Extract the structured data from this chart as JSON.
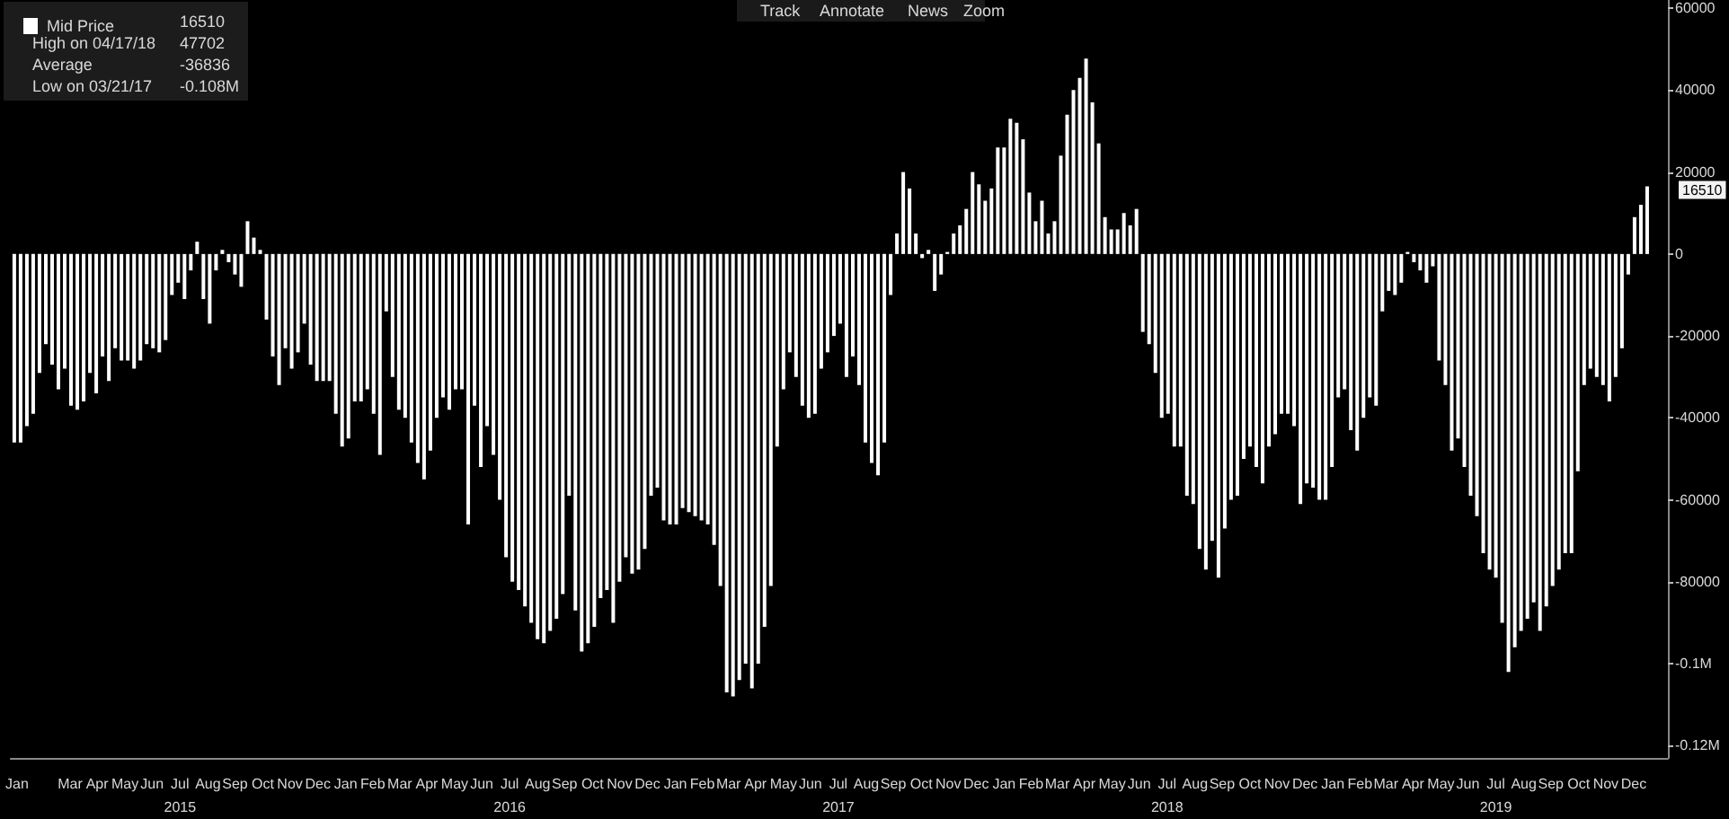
{
  "chart_data": {
    "type": "bar",
    "legend": "top left",
    "grid": false,
    "x": [
      "2015-01-13",
      "2015-01-20",
      "2015-01-27",
      "2015-02-03",
      "2015-02-10",
      "2015-02-17",
      "2015-02-24",
      "2015-03-03",
      "2015-03-10",
      "2015-03-17",
      "2015-03-24",
      "2015-03-31",
      "2015-04-07",
      "2015-04-14",
      "2015-04-21",
      "2015-04-28",
      "2015-05-05",
      "2015-05-12",
      "2015-05-19",
      "2015-05-26",
      "2015-06-02",
      "2015-06-09",
      "2015-06-16",
      "2015-06-23",
      "2015-06-30",
      "2015-07-07",
      "2015-07-14",
      "2015-07-21",
      "2015-07-28",
      "2015-08-04",
      "2015-08-11",
      "2015-08-18",
      "2015-08-25",
      "2015-09-01",
      "2015-09-08",
      "2015-09-15",
      "2015-09-22",
      "2015-09-29",
      "2015-10-06",
      "2015-10-13",
      "2015-10-20",
      "2015-10-27",
      "2015-11-03",
      "2015-11-10",
      "2015-11-17",
      "2015-11-24",
      "2015-12-01",
      "2015-12-08",
      "2015-12-15",
      "2015-12-22",
      "2015-12-29",
      "2016-01-05",
      "2016-01-12",
      "2016-01-19",
      "2016-01-26",
      "2016-02-02",
      "2016-02-09",
      "2016-02-16",
      "2016-02-23",
      "2016-03-01",
      "2016-03-08",
      "2016-03-15",
      "2016-03-22",
      "2016-03-29",
      "2016-04-05",
      "2016-04-12",
      "2016-04-19",
      "2016-04-26",
      "2016-05-03",
      "2016-05-10",
      "2016-05-17",
      "2016-05-24",
      "2016-05-31",
      "2016-06-07",
      "2016-06-14",
      "2016-06-21",
      "2016-06-28",
      "2016-07-05",
      "2016-07-12",
      "2016-07-19",
      "2016-07-26",
      "2016-08-02",
      "2016-08-09",
      "2016-08-16",
      "2016-08-23",
      "2016-08-30",
      "2016-09-06",
      "2016-09-13",
      "2016-09-20",
      "2016-09-27",
      "2016-10-04",
      "2016-10-11",
      "2016-10-18",
      "2016-10-25",
      "2016-11-01",
      "2016-11-08",
      "2016-11-15",
      "2016-11-22",
      "2016-11-29",
      "2016-12-06",
      "2016-12-13",
      "2016-12-20",
      "2016-12-27",
      "2017-01-03",
      "2017-01-10",
      "2017-01-17",
      "2017-01-24",
      "2017-01-31",
      "2017-02-07",
      "2017-02-14",
      "2017-02-21",
      "2017-02-28",
      "2017-03-07",
      "2017-03-14",
      "2017-03-21",
      "2017-03-28",
      "2017-04-04",
      "2017-04-11",
      "2017-04-18",
      "2017-04-25",
      "2017-05-02",
      "2017-05-09",
      "2017-05-16",
      "2017-05-23",
      "2017-05-30",
      "2017-06-06",
      "2017-06-13",
      "2017-06-20",
      "2017-06-27",
      "2017-07-04",
      "2017-07-11",
      "2017-07-18",
      "2017-07-25",
      "2017-08-01",
      "2017-08-08",
      "2017-08-15",
      "2017-08-22",
      "2017-08-29",
      "2017-09-05",
      "2017-09-12",
      "2017-09-19",
      "2017-09-26",
      "2017-10-03",
      "2017-10-10",
      "2017-10-17",
      "2017-10-24",
      "2017-10-31",
      "2017-11-07",
      "2017-11-14",
      "2017-11-21",
      "2017-11-28",
      "2017-12-05",
      "2017-12-12",
      "2017-12-19",
      "2017-12-26",
      "2018-01-02",
      "2018-01-09",
      "2018-01-16",
      "2018-01-23",
      "2018-01-30",
      "2018-02-06",
      "2018-02-13",
      "2018-02-20",
      "2018-02-27",
      "2018-03-06",
      "2018-03-13",
      "2018-03-20",
      "2018-03-27",
      "2018-04-03",
      "2018-04-10",
      "2018-04-17",
      "2018-04-24",
      "2018-05-01",
      "2018-05-08",
      "2018-05-15",
      "2018-05-22",
      "2018-05-29",
      "2018-06-05",
      "2018-06-12",
      "2018-06-19",
      "2018-06-26",
      "2018-07-03",
      "2018-07-10",
      "2018-07-17",
      "2018-07-24",
      "2018-07-31",
      "2018-08-07",
      "2018-08-14",
      "2018-08-21",
      "2018-08-28",
      "2018-09-04",
      "2018-09-11",
      "2018-09-18",
      "2018-09-25",
      "2018-10-02",
      "2018-10-09",
      "2018-10-16",
      "2018-10-23",
      "2018-10-30",
      "2018-11-06",
      "2018-11-13",
      "2018-11-20",
      "2018-11-27",
      "2018-12-04",
      "2018-12-11",
      "2018-12-18",
      "2018-12-25",
      "2019-01-01",
      "2019-01-08",
      "2019-01-15",
      "2019-01-22",
      "2019-01-29",
      "2019-02-05",
      "2019-02-12",
      "2019-02-19",
      "2019-02-26",
      "2019-03-05",
      "2019-03-12",
      "2019-03-19",
      "2019-03-26",
      "2019-04-02",
      "2019-04-09",
      "2019-04-16",
      "2019-04-23",
      "2019-04-30",
      "2019-05-07",
      "2019-05-14",
      "2019-05-21",
      "2019-05-28",
      "2019-06-04",
      "2019-06-11",
      "2019-06-18",
      "2019-06-25",
      "2019-07-02",
      "2019-07-09",
      "2019-07-16",
      "2019-07-23",
      "2019-07-30",
      "2019-08-06",
      "2019-08-13",
      "2019-08-20",
      "2019-08-27",
      "2019-09-03",
      "2019-09-10",
      "2019-09-17",
      "2019-09-24",
      "2019-10-01",
      "2019-10-08",
      "2019-10-15",
      "2019-10-22",
      "2019-10-29",
      "2019-11-05",
      "2019-11-12",
      "2019-11-19",
      "2019-11-26",
      "2019-12-03",
      "2019-12-10",
      "2019-12-17",
      "2019-12-24",
      "2019-12-31"
    ],
    "series": [
      {
        "name": "Mid Price",
        "color": "#ffffff",
        "values": [
          -46000,
          -46000,
          -42000,
          -39000,
          -29000,
          -22000,
          -27000,
          -33000,
          -28000,
          -37000,
          -38000,
          -36000,
          -29000,
          -34000,
          -25000,
          -31000,
          -23000,
          -26000,
          -26000,
          -28000,
          -26000,
          -22000,
          -23000,
          -24000,
          -21000,
          -10000,
          -7000,
          -11000,
          -4000,
          3000,
          -11000,
          -17000,
          -4000,
          1000,
          -2000,
          -5000,
          -8000,
          8000,
          4000,
          1000,
          -16000,
          -25000,
          -32000,
          -23000,
          -28000,
          -24000,
          -17000,
          -27000,
          -31000,
          -31000,
          -31000,
          -39000,
          -47000,
          -45000,
          -36000,
          -36000,
          -33000,
          -39000,
          -49000,
          -14000,
          -30000,
          -38000,
          -40000,
          -46000,
          -51000,
          -55000,
          -48000,
          -40000,
          -35000,
          -38000,
          -33000,
          -33000,
          -66000,
          -37000,
          -52000,
          -42000,
          -49000,
          -60000,
          -74000,
          -80000,
          -82000,
          -86000,
          -90000,
          -94000,
          -95000,
          -92000,
          -89000,
          -83000,
          -59000,
          -87000,
          -97000,
          -95000,
          -91000,
          -84000,
          -82000,
          -90000,
          -80000,
          -74000,
          -78000,
          -77000,
          -72000,
          -59000,
          -57000,
          -65000,
          -66000,
          -66000,
          -62000,
          -63000,
          -64000,
          -65000,
          -66000,
          -71000,
          -81000,
          -107000,
          -108000,
          -104000,
          -100000,
          -106000,
          -100000,
          -91000,
          -81000,
          -47000,
          -33000,
          -24000,
          -30000,
          -37000,
          -40000,
          -39000,
          -28000,
          -24000,
          -20000,
          -17000,
          -30000,
          -25000,
          -32000,
          -46000,
          -51000,
          -54000,
          -46000,
          -10000,
          5000,
          20000,
          16000,
          5000,
          -1000,
          1000,
          -9000,
          -5000,
          500,
          5000,
          7000,
          11000,
          20000,
          17000,
          13000,
          16000,
          26000,
          26000,
          33000,
          32000,
          28000,
          15000,
          8000,
          13000,
          5000,
          8000,
          24000,
          34000,
          40000,
          43000,
          47702,
          37000,
          27000,
          9000,
          6000,
          6000,
          10000,
          7000,
          11000,
          -19000,
          -22000,
          -29000,
          -40000,
          -39000,
          -47000,
          -47000,
          -59000,
          -61000,
          -72000,
          -77000,
          -70000,
          -79000,
          -67000,
          -60000,
          -59000,
          -50000,
          -47000,
          -52000,
          -56000,
          -47000,
          -44000,
          -39000,
          -39000,
          -42000,
          -61000,
          -56000,
          -57000,
          -60000,
          -60000,
          -52000,
          -35000,
          -33000,
          -43000,
          -48000,
          -40000,
          -35000,
          -37000,
          -14000,
          -9000,
          -10000,
          -7000,
          500,
          -2000,
          -4000,
          -7000,
          -3000,
          -26000,
          -32000,
          -48000,
          -45000,
          -52000,
          -59000,
          -64000,
          -73000,
          -77000,
          -79000,
          -90000,
          -102000,
          -96000,
          -92000,
          -89000,
          -85000,
          -92000,
          -86000,
          -81000,
          -77000,
          -73000,
          -73000,
          -53000,
          -32000,
          -28000,
          -30000,
          -32000,
          -36000,
          -30000,
          -23000,
          -5000,
          9000,
          12000,
          16510
        ]
      }
    ],
    "xlim": [
      "2015-01-09",
      "2020-01-23"
    ],
    "xticks": [
      {
        "value": "2015-01-16",
        "label": "Jan"
      },
      {
        "value": "2015-03-16",
        "label": "Mar"
      },
      {
        "value": "2015-04-15",
        "label": "Apr"
      },
      {
        "value": "2015-05-16",
        "label": "May"
      },
      {
        "value": "2015-06-15",
        "label": "Jun"
      },
      {
        "value": "2015-07-16",
        "label": "Jul\n2015"
      },
      {
        "value": "2015-08-16",
        "label": "Aug"
      },
      {
        "value": "2015-09-15",
        "label": "Sep"
      },
      {
        "value": "2015-10-16",
        "label": "Oct"
      },
      {
        "value": "2015-11-15",
        "label": "Nov"
      },
      {
        "value": "2015-12-16",
        "label": "Dec"
      },
      {
        "value": "2016-01-16",
        "label": "Jan"
      },
      {
        "value": "2016-02-15",
        "label": "Feb"
      },
      {
        "value": "2016-03-16",
        "label": "Mar"
      },
      {
        "value": "2016-04-15",
        "label": "Apr"
      },
      {
        "value": "2016-05-16",
        "label": "May"
      },
      {
        "value": "2016-06-15",
        "label": "Jun"
      },
      {
        "value": "2016-07-16",
        "label": "Jul\n2016"
      },
      {
        "value": "2016-08-16",
        "label": "Aug"
      },
      {
        "value": "2016-09-15",
        "label": "Sep"
      },
      {
        "value": "2016-10-16",
        "label": "Oct"
      },
      {
        "value": "2016-11-15",
        "label": "Nov"
      },
      {
        "value": "2016-12-16",
        "label": "Dec"
      },
      {
        "value": "2017-01-16",
        "label": "Jan"
      },
      {
        "value": "2017-02-15",
        "label": "Feb"
      },
      {
        "value": "2017-03-16",
        "label": "Mar"
      },
      {
        "value": "2017-04-15",
        "label": "Apr"
      },
      {
        "value": "2017-05-16",
        "label": "May"
      },
      {
        "value": "2017-06-15",
        "label": "Jun"
      },
      {
        "value": "2017-07-16",
        "label": "Jul\n2017"
      },
      {
        "value": "2017-08-16",
        "label": "Aug"
      },
      {
        "value": "2017-09-15",
        "label": "Sep"
      },
      {
        "value": "2017-10-16",
        "label": "Oct"
      },
      {
        "value": "2017-11-15",
        "label": "Nov"
      },
      {
        "value": "2017-12-16",
        "label": "Dec"
      },
      {
        "value": "2018-01-16",
        "label": "Jan"
      },
      {
        "value": "2018-02-15",
        "label": "Feb"
      },
      {
        "value": "2018-03-16",
        "label": "Mar"
      },
      {
        "value": "2018-04-15",
        "label": "Apr"
      },
      {
        "value": "2018-05-16",
        "label": "May"
      },
      {
        "value": "2018-06-15",
        "label": "Jun"
      },
      {
        "value": "2018-07-16",
        "label": "Jul\n2018"
      },
      {
        "value": "2018-08-16",
        "label": "Aug"
      },
      {
        "value": "2018-09-15",
        "label": "Sep"
      },
      {
        "value": "2018-10-16",
        "label": "Oct"
      },
      {
        "value": "2018-11-15",
        "label": "Nov"
      },
      {
        "value": "2018-12-16",
        "label": "Dec"
      },
      {
        "value": "2019-01-16",
        "label": "Jan"
      },
      {
        "value": "2019-02-15",
        "label": "Feb"
      },
      {
        "value": "2019-03-16",
        "label": "Mar"
      },
      {
        "value": "2019-04-15",
        "label": "Apr"
      },
      {
        "value": "2019-05-16",
        "label": "May"
      },
      {
        "value": "2019-06-15",
        "label": "Jun"
      },
      {
        "value": "2019-07-16",
        "label": "Jul\n2019"
      },
      {
        "value": "2019-08-16",
        "label": "Aug"
      },
      {
        "value": "2019-09-15",
        "label": "Sep"
      },
      {
        "value": "2019-10-16",
        "label": "Oct"
      },
      {
        "value": "2019-11-15",
        "label": "Nov"
      },
      {
        "value": "2019-12-16",
        "label": "Dec"
      }
    ],
    "ylim": [
      -123000,
      62000
    ],
    "yticks": [
      60000,
      40000,
      20000,
      0,
      -20000,
      -40000,
      -60000,
      -80000,
      {
        "value": -100000,
        "label": "-0.1M"
      },
      {
        "value": -120000,
        "label": "-0.12M"
      }
    ],
    "annotations": [
      {
        "text": "16510",
        "x": "2019-12-31",
        "y": 16510
      },
      "16510",
      "High on 04/17/18",
      "47702",
      "Average",
      "-36836",
      "Low on 03/21/17",
      "-0.108M",
      "Track",
      "Annotate",
      "News",
      "Zoom"
    ]
  }
}
